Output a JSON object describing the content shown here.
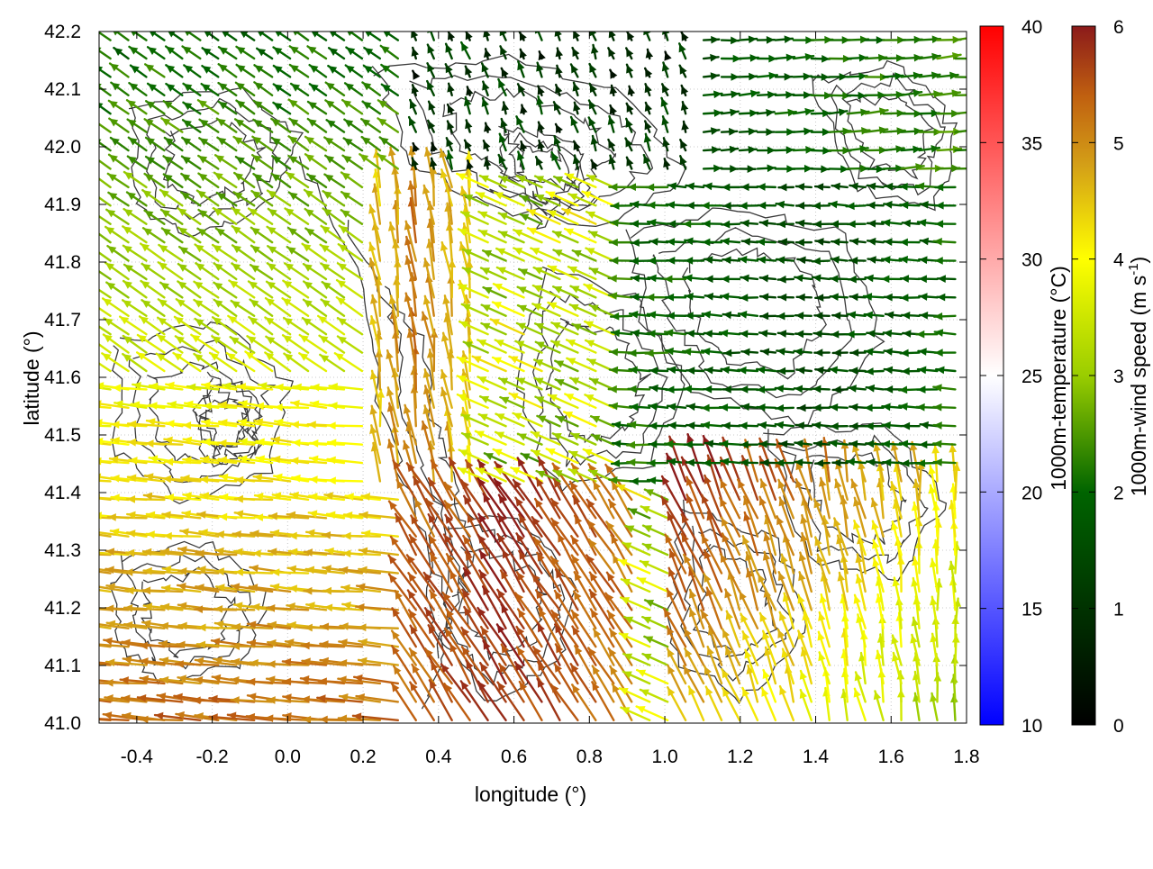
{
  "chart_data": {
    "type": "vector field",
    "title": "",
    "xlabel": "longitude (°)",
    "ylabel": "latitude (°)",
    "xlim": [
      -0.5,
      1.8
    ],
    "ylim": [
      41.0,
      42.2
    ],
    "xticks": [
      "-0.4",
      "-0.2",
      "0.0",
      "0.2",
      "0.4",
      "0.6",
      "0.8",
      "1.0",
      "1.2",
      "1.4",
      "1.6",
      "1.8"
    ],
    "yticks": [
      "41.0",
      "41.1",
      "41.2",
      "41.3",
      "41.4",
      "41.5",
      "41.6",
      "41.7",
      "41.8",
      "41.9",
      "42.0",
      "42.1",
      "42.2"
    ],
    "grid": true,
    "colorbars": [
      {
        "label": "1000m-temperature (°C)",
        "range": [
          10,
          40
        ],
        "ticks": [
          "10",
          "15",
          "20",
          "25",
          "30",
          "35",
          "40"
        ],
        "colors": [
          "#0000ff",
          "#ffffff",
          "#ff0000"
        ]
      },
      {
        "label": "1000m-wind speed (m s-1)",
        "label_main": "1000m-wind speed (m s",
        "label_sup": "-1",
        "label_close": ")",
        "range": [
          0,
          6
        ],
        "ticks": [
          "0",
          "1",
          "2",
          "3",
          "4",
          "5",
          "6"
        ],
        "colors": [
          "#000000",
          "#006400",
          "#9acd00",
          "#ffff00",
          "#d4a017",
          "#c06010",
          "#8b1a1a"
        ]
      }
    ],
    "contours": "terrain isolines (dark grey)",
    "regions": [
      {
        "area": "west coast lowlands (lon -0.5 to 0.3, lat 41.0 to 41.6)",
        "wind_direction": "westward",
        "speed_range": [
          3.5,
          5.5
        ]
      },
      {
        "area": "northwest (lon -0.5 to 0.2, lat 41.6 to 42.2)",
        "wind_direction": "northwest",
        "speed_range": [
          1.5,
          3.5
        ]
      },
      {
        "area": "northeast (lon 0.6 to 1.8, lat 41.5 to 42.2)",
        "wind_direction": "westward",
        "speed_range": [
          0.5,
          3.0
        ]
      },
      {
        "area": "southeast (lon 1.1 to 1.8, lat 41.0 to 41.4)",
        "wind_direction": "north-northwest",
        "speed_range": [
          4.5,
          6.0
        ]
      },
      {
        "area": "central valley (lon 0.3 to 0.9, lat 41.0 to 41.9)",
        "wind_direction": "north-northwest",
        "speed_range": [
          4.0,
          6.0
        ]
      }
    ]
  }
}
